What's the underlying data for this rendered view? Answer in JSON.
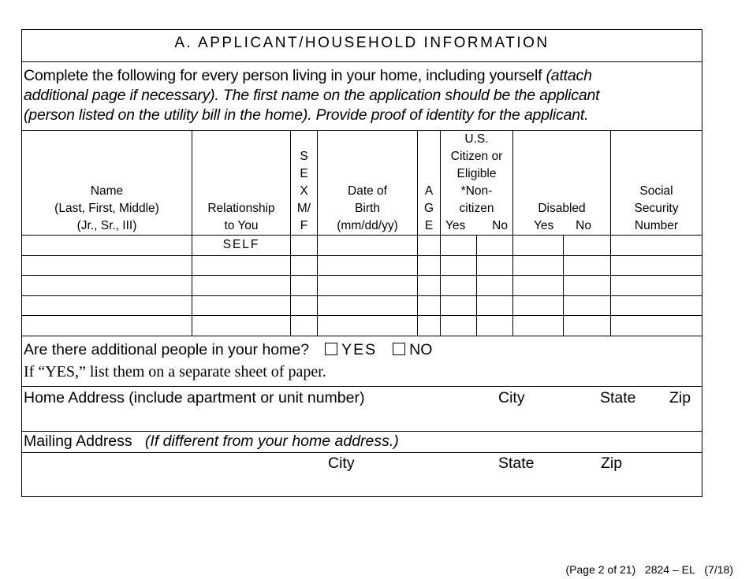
{
  "section_title": "A. APPLICANT/HOUSEHOLD INFORMATION",
  "instructions": {
    "line1_normal": "Complete the following for every person living in your home, including yourself ",
    "line1_italic": "(attach",
    "line2": "additional page if necessary).  The first name on the application should be the applicant",
    "line3": "(person listed on the utility bill in the home).  Provide proof of identity for the applicant."
  },
  "table": {
    "headers": {
      "name": [
        "Name",
        "(Last, First, Middle)",
        "(Jr., Sr., III)"
      ],
      "relationship": [
        "Relationship",
        "to You"
      ],
      "sex": [
        "S",
        "E",
        "X",
        "M/",
        "F"
      ],
      "dob": [
        "Date of",
        "Birth",
        "(mm/dd/yy)"
      ],
      "age": [
        "A",
        "G",
        "E"
      ],
      "citizen": [
        "U.S.",
        "Citizen or",
        "Eligible",
        "*Non-",
        "citizen"
      ],
      "disabled": "Disabled",
      "yes": "Yes",
      "no": "No",
      "ssn": [
        "Social",
        "Security",
        "Number"
      ]
    },
    "first_row_relationship": "SELF",
    "row_count": 5
  },
  "additional_people": {
    "question": "Are there additional people in your home?",
    "yes_label": "YES",
    "no_label": "NO",
    "note": "If “YES,” list them on a separate sheet of paper."
  },
  "home_address": {
    "label": "Home Address (include apartment or unit number)",
    "city": "City",
    "state": "State",
    "zip": "Zip"
  },
  "mailing_address": {
    "label": "Mailing Address",
    "note": "(If different from your home address.)",
    "city": "City",
    "state": "State",
    "zip": "Zip"
  },
  "footer": {
    "page": "(Page 2 of 21)",
    "form": "2824 – EL",
    "version": "(7/18)"
  }
}
